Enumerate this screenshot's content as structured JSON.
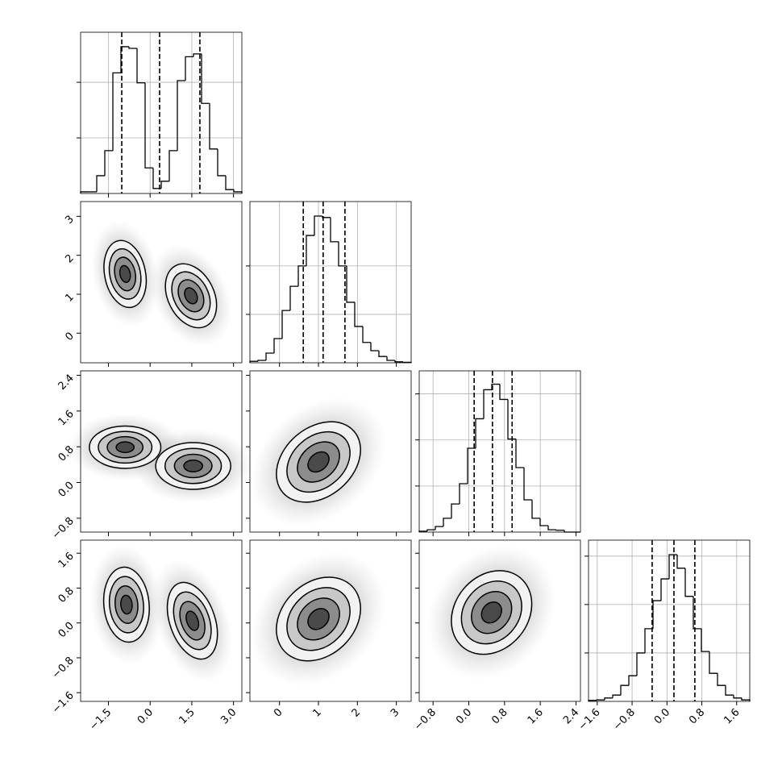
{
  "chart_data": {
    "type": "corner",
    "color": "#000000",
    "grid": true,
    "axes": [
      {
        "lim": [
          -2.5,
          3.3
        ],
        "ticks": [
          {
            "value": -1.5,
            "label": "−1.5"
          },
          {
            "value": 0,
            "label": "0.0"
          },
          1.5,
          {
            "value": 3,
            "label": "3.0"
          }
        ]
      },
      {
        "lim": [
          -0.76,
          3.38
        ],
        "ticks": [
          0,
          1,
          2,
          3
        ]
      },
      {
        "lim": [
          -1.11,
          2.5
        ],
        "ticks": [
          {
            "value": -0.8,
            "label": "−0.8"
          },
          {
            "value": 0,
            "label": "0.0"
          },
          0.8,
          1.6,
          2.4
        ]
      },
      {
        "lim": [
          -1.8,
          1.9
        ],
        "ticks": [
          {
            "value": -1.6,
            "label": "−1.6"
          },
          {
            "value": -0.8,
            "label": "−0.8"
          },
          {
            "value": 0,
            "label": "0.0"
          },
          0.8,
          1.6
        ]
      }
    ],
    "histograms": [
      {
        "ylim": [
          0,
          2.9
        ],
        "yticks": [
          1,
          2
        ],
        "bins": [
          -2.5,
          -2.21,
          -1.92,
          -1.63,
          -1.34,
          -1.05,
          -0.76,
          -0.47,
          -0.18,
          0.11,
          0.4,
          0.69,
          0.98,
          1.27,
          1.56,
          1.85,
          2.14,
          2.43,
          2.72,
          3.01,
          3.3
        ],
        "values": [
          0.03,
          0.03,
          0.32,
          0.77,
          2.17,
          2.64,
          2.61,
          1.99,
          0.46,
          0.09,
          0.22,
          0.77,
          2.03,
          2.46,
          2.51,
          1.62,
          0.8,
          0.32,
          0.07,
          0.03
        ],
        "quantiles": [
          -1.02,
          0.34,
          1.79
        ]
      },
      {
        "ylim": [
          0,
          3.33
        ],
        "yticks": [
          1,
          2
        ],
        "bins": [
          -0.76,
          -0.553,
          -0.346,
          -0.139,
          0.068,
          0.275,
          0.482,
          0.689,
          0.896,
          1.103,
          1.31,
          1.517,
          1.724,
          1.931,
          2.138,
          2.345,
          2.552,
          2.759,
          2.966,
          3.173,
          3.38
        ],
        "values": [
          0.03,
          0.05,
          0.2,
          0.5,
          1.08,
          1.58,
          2.0,
          2.63,
          3.03,
          3.0,
          2.5,
          2.0,
          1.25,
          0.75,
          0.42,
          0.25,
          0.13,
          0.05,
          0.02,
          0.01
        ],
        "quantiles": [
          0.61,
          1.12,
          1.68
        ]
      },
      {
        "ylim": [
          0,
          3.5
        ],
        "yticks": [
          1,
          2,
          3
        ],
        "bins": [
          -1.11,
          -0.9295,
          -0.749,
          -0.5685,
          -0.388,
          -0.2075,
          -0.027,
          0.1535,
          0.334,
          0.5145,
          0.695,
          0.8755,
          1.056,
          1.2365,
          1.417,
          1.5975,
          1.778,
          1.9585,
          2.139,
          2.3195,
          2.5
        ],
        "values": [
          0.02,
          0.05,
          0.12,
          0.3,
          0.61,
          1.05,
          1.82,
          2.46,
          3.09,
          3.21,
          2.88,
          2.02,
          1.4,
          0.7,
          0.3,
          0.14,
          0.05,
          0.04,
          0,
          0
        ],
        "quantiles": [
          0.12,
          0.53,
          0.97
        ]
      },
      {
        "ylim": [
          0,
          3.33
        ],
        "yticks": [
          1,
          2,
          3
        ],
        "bins": [
          -1.8,
          -1.615,
          -1.43,
          -1.245,
          -1.06,
          -0.875,
          -0.69,
          -0.505,
          -0.32,
          -0.135,
          0.05,
          0.235,
          0.42,
          0.605,
          0.79,
          0.975,
          1.16,
          1.345,
          1.53,
          1.715,
          1.9
        ],
        "values": [
          0.02,
          0.03,
          0.07,
          0.13,
          0.33,
          0.53,
          1.0,
          1.5,
          2.08,
          2.53,
          3.03,
          2.75,
          2.17,
          1.5,
          1.03,
          0.58,
          0.33,
          0.13,
          0.07,
          0.03
        ],
        "quantiles": [
          -0.34,
          0.16,
          0.64
        ]
      }
    ],
    "panels": [
      {
        "row": 1,
        "col": 0,
        "blobs": [
          {
            "cx": -0.9,
            "cy": 1.52,
            "sx": 0.38,
            "sy": 0.43,
            "rho": -0.2
          },
          {
            "cx": 1.47,
            "cy": 0.96,
            "sx": 0.46,
            "sy": 0.41,
            "rho": -0.3
          }
        ]
      },
      {
        "row": 2,
        "col": 0,
        "blobs": [
          {
            "cx": -0.9,
            "cy": 0.79,
            "sx": 0.38,
            "sy": 0.4,
            "rho": 0
          },
          {
            "cx": 1.55,
            "cy": 0.37,
            "sx": 0.42,
            "sy": 0.42,
            "rho": 0
          }
        ]
      },
      {
        "row": 3,
        "col": 0,
        "blobs": [
          {
            "cx": -0.85,
            "cy": 0.42,
            "sx": 0.41,
            "sy": 0.43,
            "rho": -0.1
          },
          {
            "cx": 1.52,
            "cy": 0.05,
            "sx": 0.45,
            "sy": 0.44,
            "rho": -0.35
          }
        ]
      },
      {
        "row": 2,
        "col": 1,
        "blobs": [
          {
            "cx": 1.0,
            "cy": 0.46,
            "sx": 0.54,
            "sy": 0.45,
            "rho": 0.3
          }
        ]
      },
      {
        "row": 3,
        "col": 1,
        "blobs": [
          {
            "cx": 1.0,
            "cy": 0.09,
            "sx": 0.54,
            "sy": 0.48,
            "rho": 0.25
          }
        ]
      },
      {
        "row": 3,
        "col": 2,
        "blobs": [
          {
            "cx": 0.51,
            "cy": 0.24,
            "sx": 0.45,
            "sy": 0.48,
            "rho": 0.2
          }
        ]
      }
    ]
  }
}
